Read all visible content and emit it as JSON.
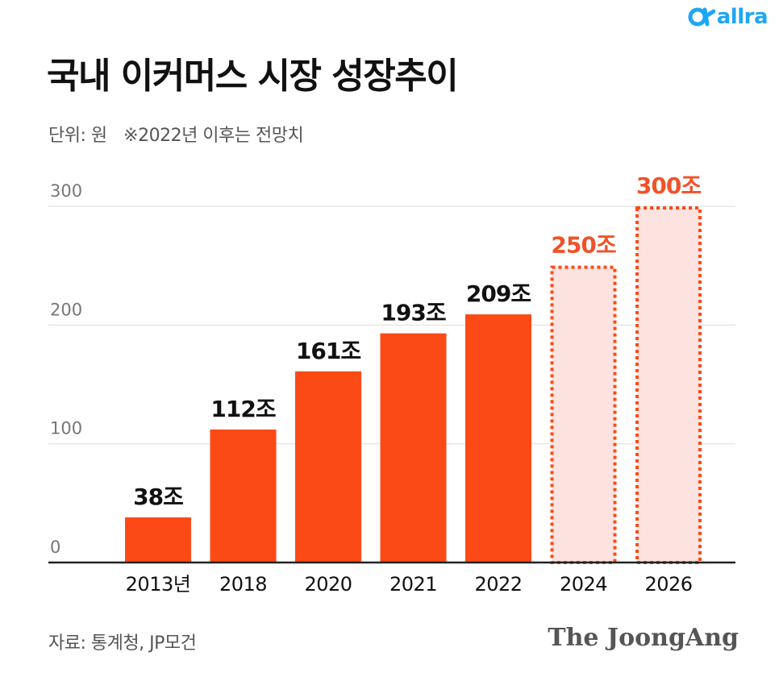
{
  "logo": {
    "text": "allra",
    "color": "#1ea6f5"
  },
  "colors": {
    "bar": "#fc4a16",
    "projected_fill": "#fde3df",
    "projected_label": "#f0522a",
    "grid": "#e6e6e6",
    "axis": "#222222"
  },
  "footer": {
    "source": "자료: 통계청, JP모건",
    "brand": "The JoongAng"
  },
  "chart_data": {
    "type": "bar",
    "title": "국내 이커머스 시장 성장추이",
    "unit_label": "단위: 원",
    "note": "※2022년 이후는 전망치",
    "categories": [
      "2013년",
      "2018",
      "2020",
      "2021",
      "2022",
      "2024",
      "2026"
    ],
    "values": [
      38,
      112,
      161,
      193,
      209,
      250,
      300
    ],
    "data_labels": [
      "38조",
      "112조",
      "161조",
      "193조",
      "209조",
      "250조",
      "300조"
    ],
    "projected": [
      false,
      false,
      false,
      false,
      false,
      true,
      true
    ],
    "ylim": [
      0,
      300
    ],
    "yticks": [
      0,
      100,
      200,
      300
    ],
    "grid": true,
    "legend": "none"
  }
}
